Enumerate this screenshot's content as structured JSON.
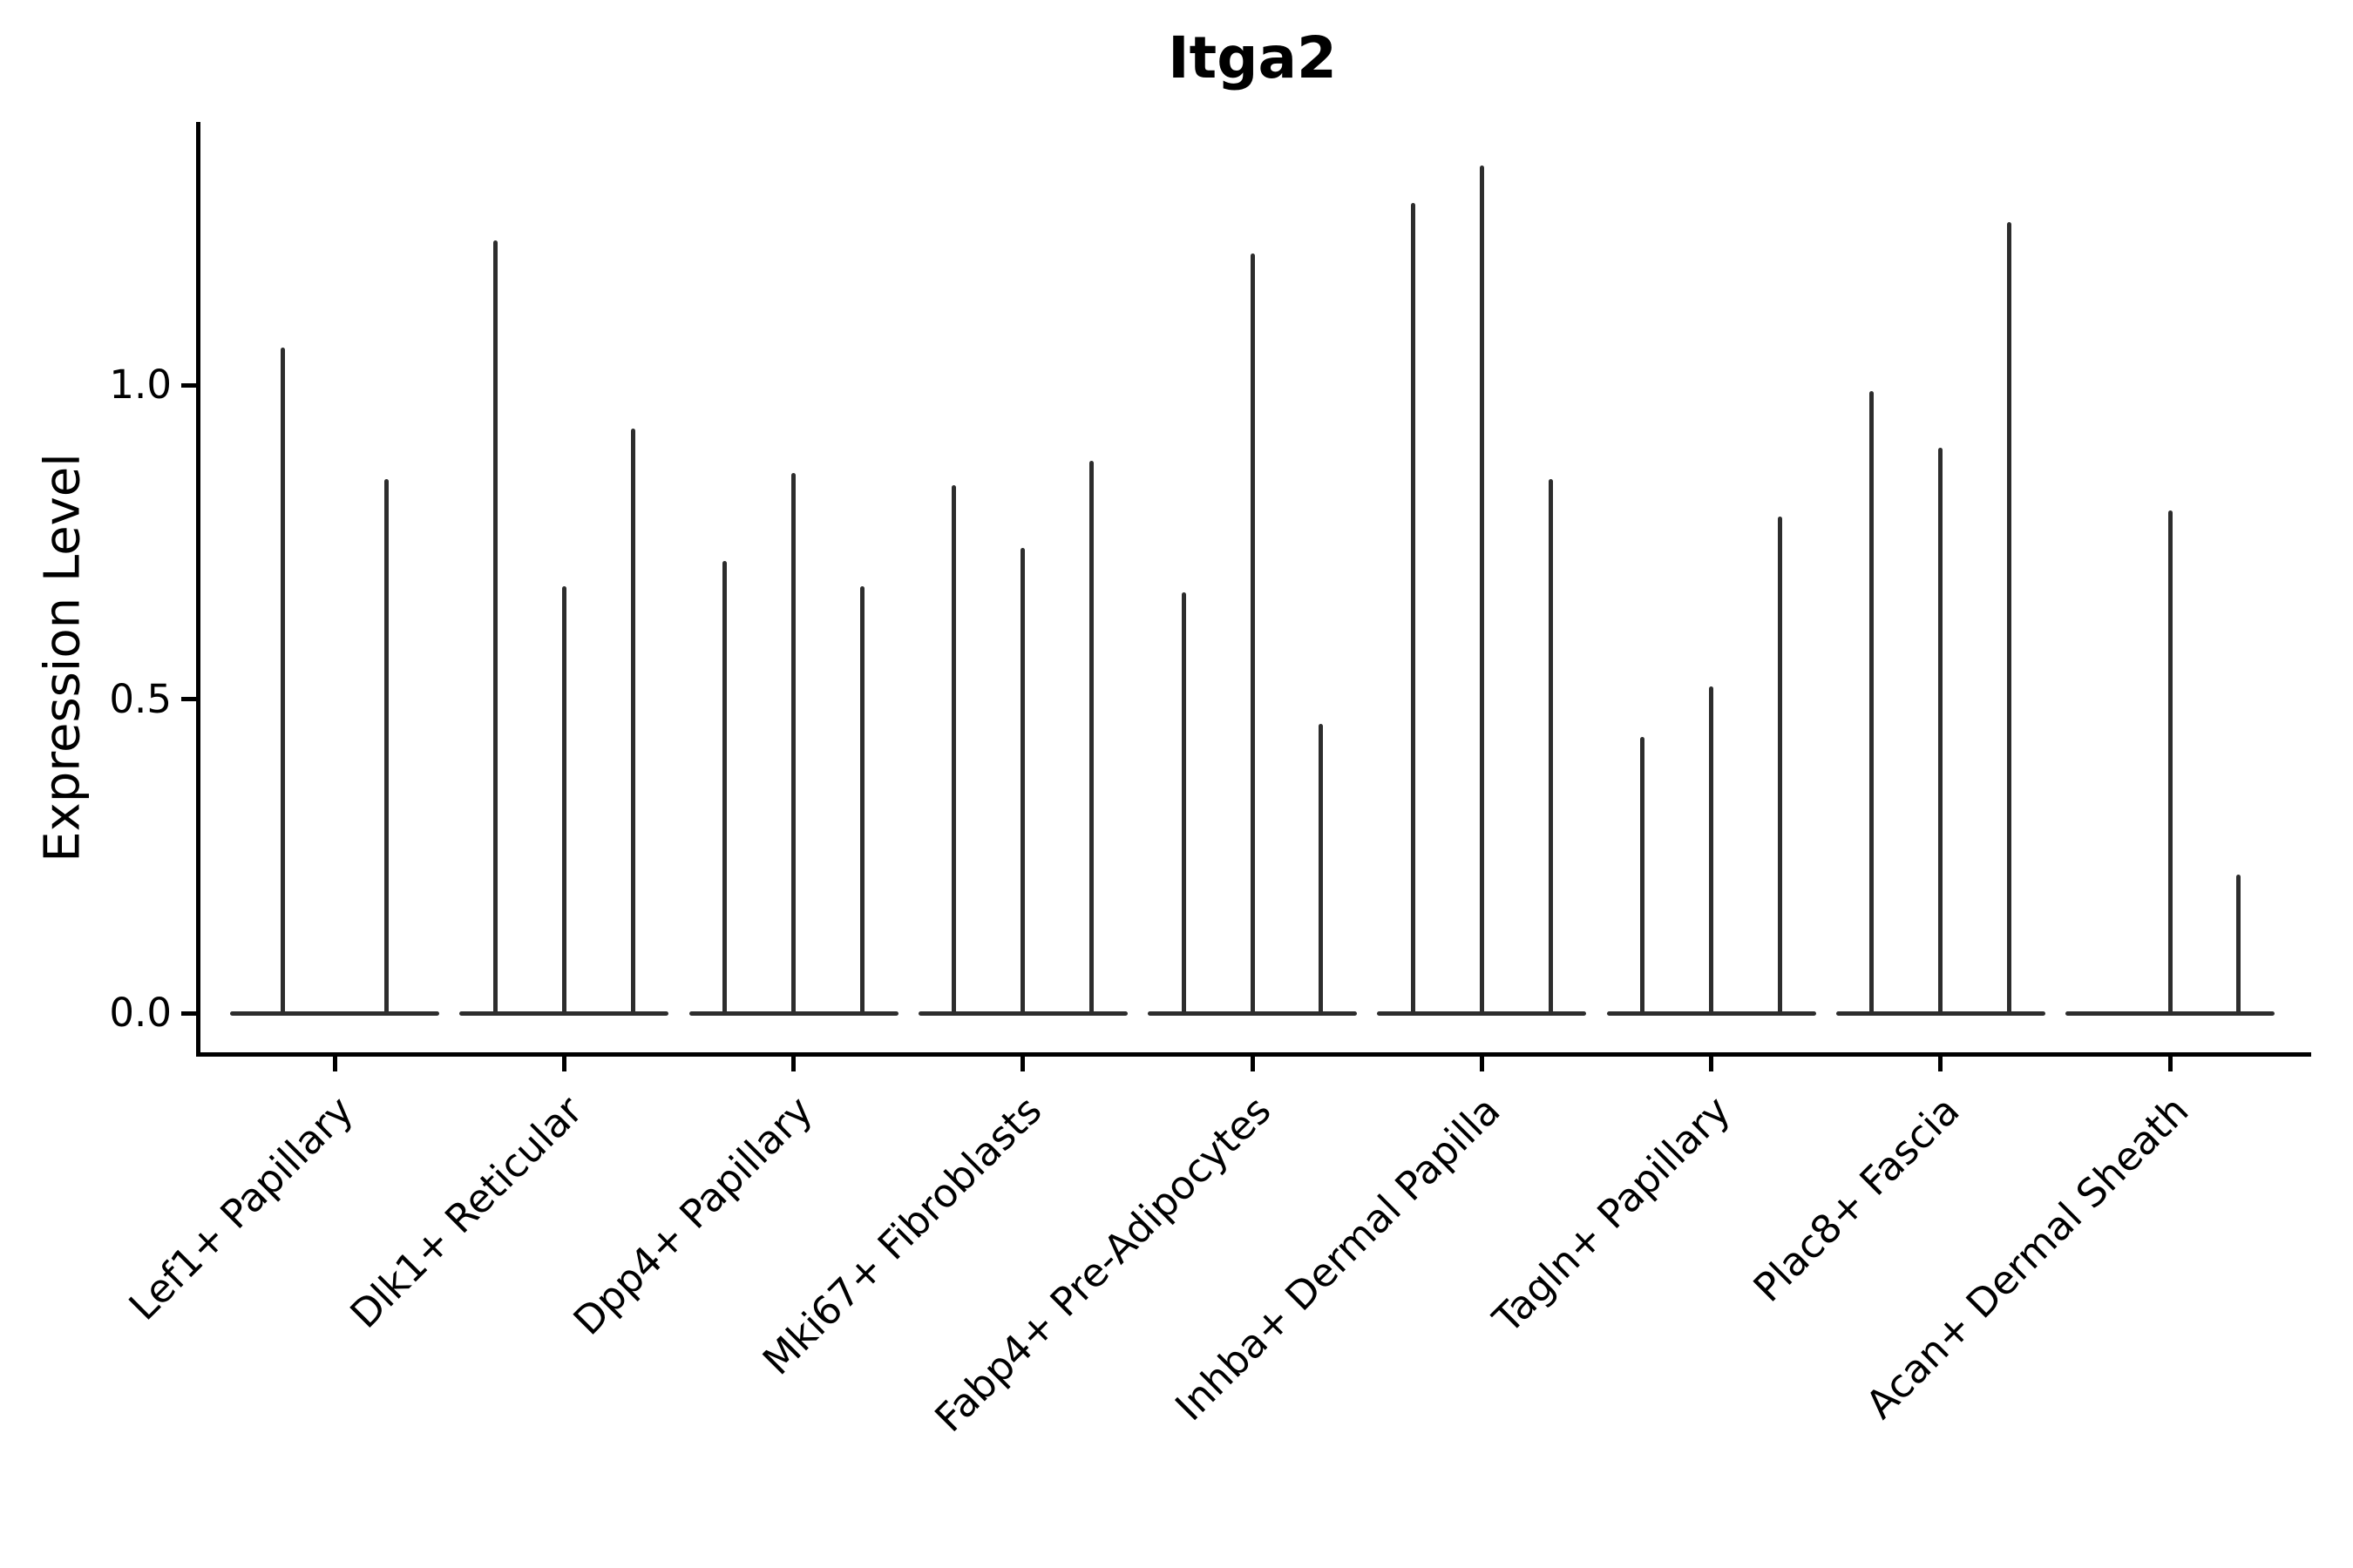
{
  "chart_data": {
    "type": "violin",
    "title": "Itga2",
    "xlabel": "",
    "ylabel": "Expression Level",
    "yticks": [
      "0.0",
      "0.5",
      "1.0"
    ],
    "ytick_values": [
      0.0,
      0.5,
      1.0
    ],
    "ylim": [
      -0.07,
      1.42
    ],
    "grid": false,
    "legend": "none",
    "xticklabel_rotation": 45,
    "violin_color": "#2d2d2d",
    "description": "Stacked violin plot (Seurat-style VlnPlot, split). Each cell-type category shows 2-3 razor-thin violins: a wide flat body at expression 0 and a thin spike up to the max expression value.",
    "base_width_category_units": 0.9,
    "categories": [
      {
        "label": "Lef1+ Papillary",
        "violins": [
          {
            "offset": -0.225,
            "max": 1.06
          },
          {
            "offset": 0.225,
            "max": 0.85
          }
        ]
      },
      {
        "label": "Dlk1+ Reticular",
        "violins": [
          {
            "offset": -0.3,
            "max": 1.23
          },
          {
            "offset": 0,
            "max": 0.68
          },
          {
            "offset": 0.3,
            "max": 0.93
          }
        ]
      },
      {
        "label": "Dpp4+ Papillary",
        "violins": [
          {
            "offset": -0.3,
            "max": 0.72
          },
          {
            "offset": 0,
            "max": 0.86
          },
          {
            "offset": 0.3,
            "max": 0.68
          }
        ]
      },
      {
        "label": "Mki67+ Fibroblasts",
        "violins": [
          {
            "offset": -0.3,
            "max": 0.84
          },
          {
            "offset": 0,
            "max": 0.74
          },
          {
            "offset": 0.3,
            "max": 0.88
          }
        ]
      },
      {
        "label": "Fabp4+ Pre-Adipocytes",
        "violins": [
          {
            "offset": -0.3,
            "max": 0.67
          },
          {
            "offset": 0,
            "max": 1.21
          },
          {
            "offset": 0.3,
            "max": 0.46
          }
        ]
      },
      {
        "label": "Inhba+ Dermal Papilla",
        "violins": [
          {
            "offset": -0.3,
            "max": 1.29
          },
          {
            "offset": 0,
            "max": 1.35
          },
          {
            "offset": 0.3,
            "max": 0.85
          }
        ]
      },
      {
        "label": "Tagln+ Papillary",
        "violins": [
          {
            "offset": -0.3,
            "max": 0.44
          },
          {
            "offset": 0,
            "max": 0.52
          },
          {
            "offset": 0.3,
            "max": 0.79
          }
        ]
      },
      {
        "label": "Plac8+ Fascia",
        "violins": [
          {
            "offset": -0.3,
            "max": 0.99
          },
          {
            "offset": 0,
            "max": 0.9
          },
          {
            "offset": 0.3,
            "max": 1.26
          }
        ]
      },
      {
        "label": "Acan+ Dermal Sheath",
        "violins": [
          {
            "offset": 0,
            "max": 0.8
          },
          {
            "offset": 0.3,
            "max": 0.22
          }
        ]
      }
    ]
  }
}
